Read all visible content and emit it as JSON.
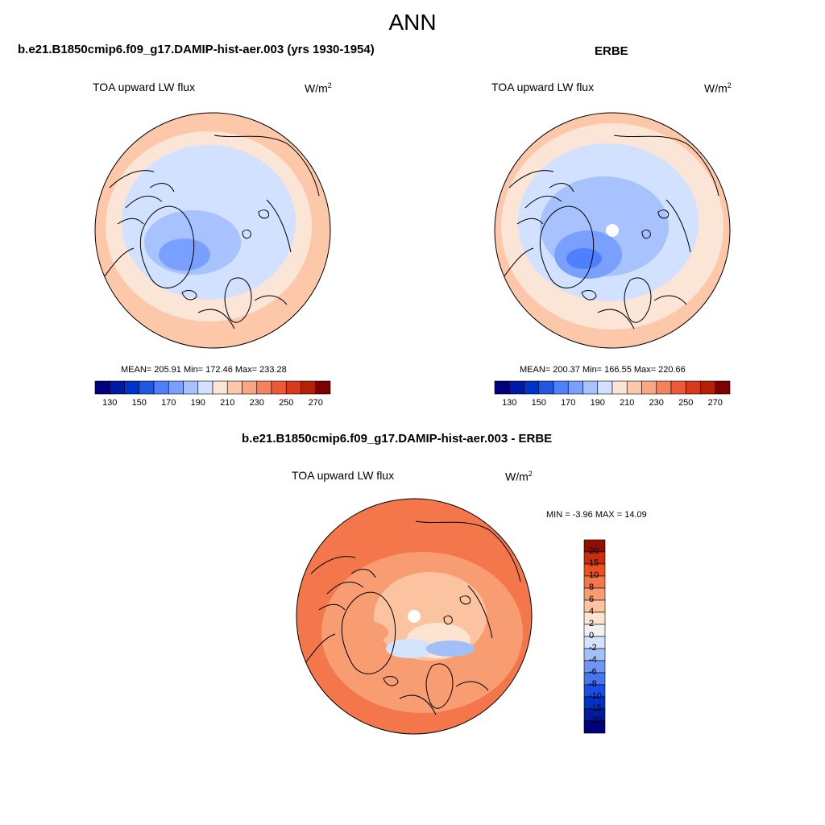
{
  "main_title": "ANN",
  "colors": {
    "abs_scale": [
      "#00007f",
      "#0019a8",
      "#0033cc",
      "#1f56e6",
      "#4d7fff",
      "#7aa0ff",
      "#a8c2ff",
      "#d2e1ff",
      "#fbe5d6",
      "#fdc8aa",
      "#f9a683",
      "#f4825d",
      "#ec5a36",
      "#d73a1a",
      "#b32006",
      "#7f0000"
    ],
    "diff_scale": [
      "#00007f",
      "#001a9c",
      "#0033c4",
      "#1a4fe6",
      "#4775f0",
      "#6f95f5",
      "#a3bff8",
      "#d3e3fb",
      "#f2f2f2",
      "#fde4d1",
      "#fbc39f",
      "#f89c72",
      "#f4764b",
      "#ec4f22",
      "#c92d0c",
      "#8f0f02"
    ],
    "land_outline": "#000000"
  },
  "panels": [
    {
      "title": "b.e21.B1850cmip6.f09_g17.DAMIP-hist-aer.003 (yrs 1930-1954)",
      "variable": "TOA upward LW flux",
      "units_base": "W/m",
      "units_exp": "2",
      "stats": "MEAN= 205.91  Min= 172.46  Max= 233.28",
      "colorbar_ticks": [
        "130",
        "150",
        "170",
        "190",
        "210",
        "230",
        "250",
        "270"
      ]
    },
    {
      "title": "ERBE",
      "variable": "TOA upward LW flux",
      "units_base": "W/m",
      "units_exp": "2",
      "stats": "MEAN= 200.37  Min= 166.55  Max= 220.66",
      "colorbar_ticks": [
        "130",
        "150",
        "170",
        "190",
        "210",
        "230",
        "250",
        "270"
      ]
    },
    {
      "title": "b.e21.B1850cmip6.f09_g17.DAMIP-hist-aer.003 - ERBE",
      "variable": "TOA upward LW flux",
      "units_base": "W/m",
      "units_exp": "2",
      "stats": "MIN =  -3.96 MAX =  14.09",
      "colorbar_ticks": [
        "20",
        "15",
        "10",
        "8",
        "6",
        "4",
        "2",
        "0",
        "-2",
        "-4",
        "-6",
        "-8",
        "-10",
        "-15",
        "-20"
      ]
    }
  ]
}
